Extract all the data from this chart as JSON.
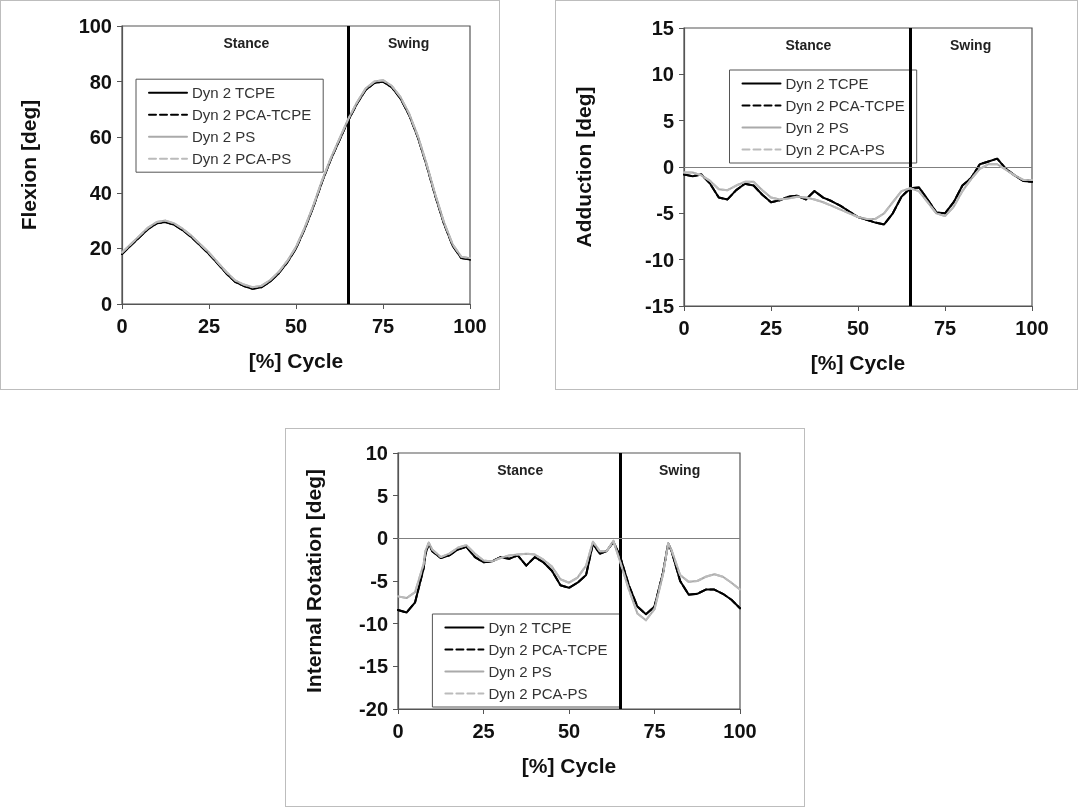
{
  "chart_data": [
    {
      "type": "line",
      "xlabel": "[%] Cycle",
      "ylabel": "Flexion [deg]",
      "annotations": [
        "Stance",
        "Swing"
      ],
      "x": [
        0,
        2.5,
        5,
        7.5,
        10,
        12.5,
        15,
        17.5,
        20,
        22.5,
        25,
        27.5,
        30,
        32.5,
        35,
        37.5,
        40,
        42.5,
        45,
        47.5,
        50,
        52.5,
        55,
        57.5,
        60,
        62.5,
        65,
        67.5,
        70,
        72.5,
        75,
        77.5,
        80,
        82.5,
        85,
        87.5,
        90,
        92.5,
        95,
        97.5,
        100
      ],
      "series": [
        {
          "name": "Dyn 2 TCPE",
          "color": "#000000",
          "line_style": "solid",
          "values": [
            18,
            21,
            24,
            27,
            29,
            29.5,
            28.5,
            26.5,
            24,
            21,
            18,
            14.5,
            11,
            8,
            6.5,
            5.5,
            6,
            8,
            11,
            15,
            20,
            27,
            35,
            44,
            52,
            59,
            66,
            72,
            77,
            79.5,
            80,
            78,
            74,
            68,
            60,
            50,
            39,
            29,
            21,
            16.5,
            16
          ]
        },
        {
          "name": "Dyn 2 PCA-TCPE",
          "color": "#000000",
          "line_style": "dashed",
          "values": [
            18,
            21,
            24,
            27,
            29,
            29.5,
            28.5,
            26.5,
            24,
            21,
            18,
            14.5,
            11,
            8,
            6.5,
            5.5,
            6,
            8,
            11,
            15,
            20,
            27,
            35,
            44,
            52,
            59,
            66,
            72,
            77,
            79.5,
            80,
            78,
            74,
            68,
            60,
            50,
            39,
            29,
            21,
            16.5,
            16
          ]
        },
        {
          "name": "Dyn 2 PS",
          "color": "#aaaaaa",
          "line_style": "solid",
          "values": [
            18.5,
            21.5,
            24.5,
            27.5,
            29.5,
            30,
            29,
            27,
            24.5,
            21.5,
            18.5,
            15,
            11.5,
            8.5,
            7,
            6,
            6.5,
            8.5,
            11.5,
            15.5,
            20.5,
            27.5,
            35.5,
            44.5,
            52.5,
            59.5,
            66.5,
            72.5,
            77.5,
            80,
            80.5,
            78.5,
            74.5,
            68.5,
            60.5,
            50.5,
            39.5,
            29.5,
            21.5,
            17,
            16.5
          ]
        },
        {
          "name": "Dyn 2 PCA-PS",
          "color": "#bbbbbb",
          "line_style": "dashed",
          "values": [
            18.5,
            21.5,
            24.5,
            27.5,
            29.5,
            30,
            29,
            27,
            24.5,
            21.5,
            18.5,
            15,
            11.5,
            8.5,
            7,
            6,
            6.5,
            8.5,
            11.5,
            15.5,
            20.5,
            27.5,
            35.5,
            44.5,
            52.5,
            59.5,
            66.5,
            72.5,
            77.5,
            80,
            80.5,
            78.5,
            74.5,
            68.5,
            60.5,
            50.5,
            39.5,
            29.5,
            21.5,
            17,
            16.5
          ]
        }
      ],
      "xlim": [
        0,
        100
      ],
      "xticks": [
        0,
        25,
        50,
        75,
        100
      ],
      "ylim": [
        0,
        100
      ],
      "yticks": [
        0,
        20,
        40,
        60,
        80,
        100
      ],
      "ref_lines": [
        {
          "axis": "x",
          "value": 65,
          "color": "#000000"
        }
      ],
      "grid": false,
      "legend": "top left",
      "marker": "none"
    },
    {
      "type": "line",
      "xlabel": "[%] Cycle",
      "ylabel": "Adduction [deg]",
      "annotations": [
        "Stance",
        "Swing"
      ],
      "x": [
        0,
        2.5,
        5,
        7.5,
        10,
        12.5,
        15,
        17.5,
        20,
        22.5,
        25,
        27.5,
        30,
        32.5,
        35,
        37.5,
        40,
        42.5,
        45,
        47.5,
        50,
        52.5,
        55,
        57.5,
        60,
        62.5,
        65,
        67.5,
        70,
        72.5,
        75,
        77.5,
        80,
        82.5,
        85,
        87.5,
        90,
        92.5,
        95,
        97.5,
        100
      ],
      "series": [
        {
          "name": "Dyn 2 TCPE",
          "color": "#000000",
          "line_style": "solid",
          "values": [
            -0.8,
            -1.0,
            -0.8,
            -1.8,
            -3.3,
            -3.5,
            -2.5,
            -1.8,
            -2.0,
            -3.0,
            -3.8,
            -3.6,
            -3.2,
            -3.1,
            -3.5,
            -2.6,
            -3.3,
            -3.7,
            -4.2,
            -4.8,
            -5.4,
            -5.7,
            -6.0,
            -6.2,
            -5.0,
            -3.2,
            -2.3,
            -2.2,
            -3.5,
            -4.9,
            -5.0,
            -3.8,
            -2.0,
            -1.2,
            0.3,
            0.6,
            0.9,
            -0.2,
            -0.9,
            -1.5,
            -1.6
          ]
        },
        {
          "name": "Dyn 2 PCA-TCPE",
          "color": "#000000",
          "line_style": "dashed",
          "values": [
            -0.8,
            -1.0,
            -0.8,
            -1.8,
            -3.3,
            -3.5,
            -2.5,
            -1.8,
            -2.0,
            -3.0,
            -3.8,
            -3.6,
            -3.2,
            -3.1,
            -3.5,
            -2.6,
            -3.3,
            -3.7,
            -4.2,
            -4.8,
            -5.4,
            -5.7,
            -6.0,
            -6.2,
            -5.0,
            -3.2,
            -2.3,
            -2.2,
            -3.5,
            -4.9,
            -5.0,
            -3.8,
            -2.0,
            -1.2,
            0.3,
            0.6,
            0.9,
            -0.2,
            -0.9,
            -1.5,
            -1.6
          ]
        },
        {
          "name": "Dyn 2 PS",
          "color": "#aaaaaa",
          "line_style": "solid",
          "values": [
            -0.6,
            -0.6,
            -0.9,
            -1.5,
            -2.4,
            -2.5,
            -2.0,
            -1.6,
            -1.6,
            -2.5,
            -3.3,
            -3.5,
            -3.4,
            -3.2,
            -3.3,
            -3.5,
            -3.8,
            -4.2,
            -4.6,
            -5.0,
            -5.4,
            -5.6,
            -5.6,
            -5.0,
            -3.8,
            -2.6,
            -2.3,
            -2.6,
            -3.8,
            -5.0,
            -5.3,
            -4.3,
            -2.6,
            -1.3,
            -0.2,
            0.3,
            0.3,
            -0.3,
            -0.9,
            -1.4,
            -1.4
          ]
        },
        {
          "name": "Dyn 2 PCA-PS",
          "color": "#bbbbbb",
          "line_style": "dashed",
          "values": [
            -0.6,
            -0.6,
            -0.9,
            -1.5,
            -2.4,
            -2.5,
            -2.0,
            -1.6,
            -1.6,
            -2.5,
            -3.3,
            -3.5,
            -3.4,
            -3.2,
            -3.3,
            -3.5,
            -3.8,
            -4.2,
            -4.6,
            -5.0,
            -5.4,
            -5.6,
            -5.6,
            -5.0,
            -3.8,
            -2.6,
            -2.3,
            -2.6,
            -3.8,
            -5.0,
            -5.3,
            -4.3,
            -2.6,
            -1.3,
            -0.2,
            0.3,
            0.3,
            -0.3,
            -0.9,
            -1.4,
            -1.4
          ]
        }
      ],
      "xlim": [
        0,
        100
      ],
      "xticks": [
        0,
        25,
        50,
        75,
        100
      ],
      "ylim": [
        -15,
        15
      ],
      "yticks": [
        -15,
        -10,
        -5,
        0,
        5,
        10,
        15
      ],
      "ref_lines": [
        {
          "axis": "x",
          "value": 65,
          "color": "#000000"
        },
        {
          "axis": "y",
          "value": 0,
          "color": "#808080"
        }
      ],
      "grid": false,
      "legend": "top",
      "marker": "none"
    },
    {
      "type": "line",
      "xlabel": "[%] Cycle",
      "ylabel": "Internal Rotation [deg]",
      "annotations": [
        "Stance",
        "Swing"
      ],
      "x": [
        0,
        2.5,
        5,
        7.5,
        8,
        9,
        10,
        12.5,
        15,
        17.5,
        20,
        22.5,
        25,
        27.5,
        30,
        32.5,
        35,
        37.5,
        40,
        42.5,
        45,
        47.5,
        50,
        52.5,
        55,
        57,
        59,
        61,
        63,
        65,
        67.5,
        70,
        72.5,
        75,
        77.5,
        79,
        80,
        82.5,
        85,
        87.5,
        90,
        92.5,
        95,
        97.5,
        100
      ],
      "series": [
        {
          "name": "Dyn 2 TCPE",
          "color": "#000000",
          "line_style": "solid",
          "values": [
            -8.4,
            -8.7,
            -7.5,
            -3.5,
            -1.9,
            -0.6,
            -1.5,
            -2.3,
            -2.0,
            -1.3,
            -1.0,
            -2.2,
            -2.8,
            -2.7,
            -2.2,
            -2.4,
            -2.0,
            -3.2,
            -2.2,
            -2.8,
            -3.8,
            -5.5,
            -5.8,
            -5.2,
            -4.3,
            -0.6,
            -1.8,
            -1.5,
            -0.4,
            -2.2,
            -5.5,
            -8.0,
            -8.9,
            -8.0,
            -4.0,
            -0.6,
            -1.5,
            -5.0,
            -6.6,
            -6.5,
            -6.0,
            -6.0,
            -6.5,
            -7.2,
            -8.2
          ]
        },
        {
          "name": "Dyn 2 PCA-TCPE",
          "color": "#000000",
          "line_style": "dashed",
          "values": [
            -8.4,
            -8.7,
            -7.5,
            -3.5,
            -1.9,
            -0.6,
            -1.5,
            -2.3,
            -2.0,
            -1.3,
            -1.0,
            -2.2,
            -2.8,
            -2.7,
            -2.2,
            -2.4,
            -2.0,
            -3.2,
            -2.2,
            -2.8,
            -3.8,
            -5.5,
            -5.8,
            -5.2,
            -4.3,
            -0.6,
            -1.8,
            -1.5,
            -0.4,
            -2.2,
            -5.5,
            -8.0,
            -8.9,
            -8.0,
            -4.0,
            -0.6,
            -1.5,
            -5.0,
            -6.6,
            -6.5,
            -6.0,
            -6.0,
            -6.5,
            -7.2,
            -8.2
          ]
        },
        {
          "name": "Dyn 2 PS",
          "color": "#aaaaaa",
          "line_style": "solid",
          "values": [
            -6.8,
            -7.0,
            -6.3,
            -3.0,
            -1.5,
            -0.5,
            -1.3,
            -2.2,
            -1.8,
            -1.1,
            -0.8,
            -1.8,
            -2.6,
            -2.7,
            -2.3,
            -2.0,
            -1.9,
            -1.8,
            -1.9,
            -2.5,
            -3.3,
            -4.8,
            -5.2,
            -4.6,
            -3.2,
            -0.4,
            -1.5,
            -1.5,
            -0.3,
            -2.8,
            -6.0,
            -8.8,
            -9.6,
            -8.3,
            -4.2,
            -0.6,
            -1.4,
            -4.3,
            -5.1,
            -5.0,
            -4.5,
            -4.2,
            -4.5,
            -5.2,
            -6.0
          ]
        },
        {
          "name": "Dyn 2 PCA-PS",
          "color": "#bbbbbb",
          "line_style": "dashed",
          "values": [
            -6.8,
            -7.0,
            -6.3,
            -3.0,
            -1.5,
            -0.5,
            -1.3,
            -2.2,
            -1.8,
            -1.1,
            -0.8,
            -1.8,
            -2.6,
            -2.7,
            -2.3,
            -2.0,
            -1.9,
            -1.8,
            -1.9,
            -2.5,
            -3.3,
            -4.8,
            -5.2,
            -4.6,
            -3.2,
            -0.4,
            -1.5,
            -1.5,
            -0.3,
            -2.8,
            -6.0,
            -8.8,
            -9.6,
            -8.3,
            -4.2,
            -0.6,
            -1.4,
            -4.3,
            -5.1,
            -5.0,
            -4.5,
            -4.2,
            -4.5,
            -5.2,
            -6.0
          ]
        }
      ],
      "xlim": [
        0,
        100
      ],
      "xticks": [
        0,
        25,
        50,
        75,
        100
      ],
      "ylim": [
        -20,
        10
      ],
      "yticks": [
        -20,
        -15,
        -10,
        -5,
        0,
        5,
        10
      ],
      "ref_lines": [
        {
          "axis": "x",
          "value": 65,
          "color": "#000000"
        },
        {
          "axis": "y",
          "value": 0,
          "color": "#808080"
        }
      ],
      "grid": false,
      "legend": "bottom left",
      "marker": "none"
    }
  ]
}
